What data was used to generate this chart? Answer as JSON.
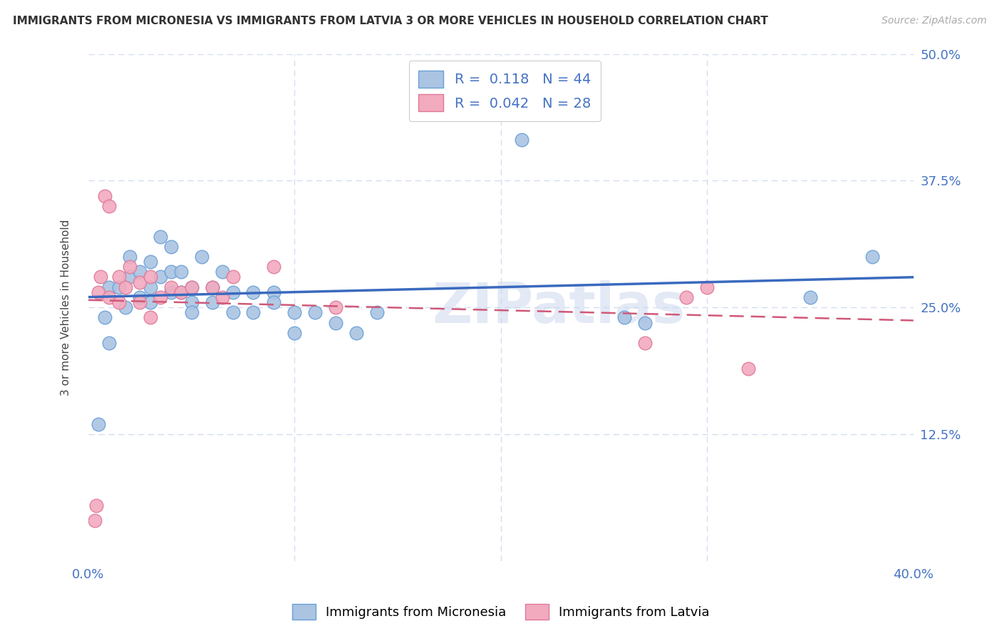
{
  "title": "IMMIGRANTS FROM MICRONESIA VS IMMIGRANTS FROM LATVIA 3 OR MORE VEHICLES IN HOUSEHOLD CORRELATION CHART",
  "source": "Source: ZipAtlas.com",
  "ylabel": "3 or more Vehicles in Household",
  "watermark": "ZIPatlas",
  "blue_R": 0.118,
  "blue_N": 44,
  "pink_R": 0.042,
  "pink_N": 28,
  "xlim": [
    0.0,
    0.4
  ],
  "ylim": [
    0.0,
    0.5
  ],
  "xticks": [
    0.0,
    0.1,
    0.2,
    0.3,
    0.4
  ],
  "yticks": [
    0.0,
    0.125,
    0.25,
    0.375,
    0.5
  ],
  "ytick_labels_right": [
    "",
    "12.5%",
    "25.0%",
    "37.5%",
    "50.0%"
  ],
  "blue_color": "#aac4e2",
  "pink_color": "#f2aabf",
  "blue_edge": "#6a9fd8",
  "pink_edge": "#e07898",
  "trend_blue_color": "#3a6abf",
  "trend_pink_color": "#d05878",
  "axis_label_color": "#4472c4",
  "background_color": "#ffffff",
  "grid_color": "#d4ddf0",
  "blue_scatter_x": [
    0.005,
    0.008,
    0.01,
    0.01,
    0.015,
    0.018,
    0.02,
    0.02,
    0.025,
    0.025,
    0.03,
    0.03,
    0.03,
    0.035,
    0.035,
    0.04,
    0.04,
    0.04,
    0.045,
    0.045,
    0.05,
    0.05,
    0.05,
    0.055,
    0.06,
    0.06,
    0.065,
    0.07,
    0.07,
    0.08,
    0.08,
    0.09,
    0.09,
    0.1,
    0.1,
    0.11,
    0.12,
    0.13,
    0.14,
    0.21,
    0.26,
    0.27,
    0.35,
    0.38
  ],
  "blue_scatter_y": [
    0.135,
    0.24,
    0.27,
    0.215,
    0.27,
    0.25,
    0.3,
    0.28,
    0.285,
    0.26,
    0.295,
    0.27,
    0.255,
    0.32,
    0.28,
    0.31,
    0.285,
    0.265,
    0.285,
    0.265,
    0.27,
    0.255,
    0.245,
    0.3,
    0.27,
    0.255,
    0.285,
    0.265,
    0.245,
    0.265,
    0.245,
    0.265,
    0.255,
    0.245,
    0.225,
    0.245,
    0.235,
    0.225,
    0.245,
    0.415,
    0.24,
    0.235,
    0.26,
    0.3
  ],
  "pink_scatter_x": [
    0.003,
    0.004,
    0.005,
    0.006,
    0.008,
    0.01,
    0.01,
    0.015,
    0.015,
    0.018,
    0.02,
    0.025,
    0.025,
    0.03,
    0.03,
    0.035,
    0.04,
    0.045,
    0.05,
    0.06,
    0.065,
    0.07,
    0.09,
    0.12,
    0.27,
    0.29,
    0.3,
    0.32
  ],
  "pink_scatter_y": [
    0.04,
    0.055,
    0.265,
    0.28,
    0.36,
    0.35,
    0.26,
    0.28,
    0.255,
    0.27,
    0.29,
    0.275,
    0.255,
    0.28,
    0.24,
    0.26,
    0.27,
    0.265,
    0.27,
    0.27,
    0.26,
    0.28,
    0.29,
    0.25,
    0.215,
    0.26,
    0.27,
    0.19
  ],
  "legend_label_blue": "Immigrants from Micronesia",
  "legend_label_pink": "Immigrants from Latvia"
}
